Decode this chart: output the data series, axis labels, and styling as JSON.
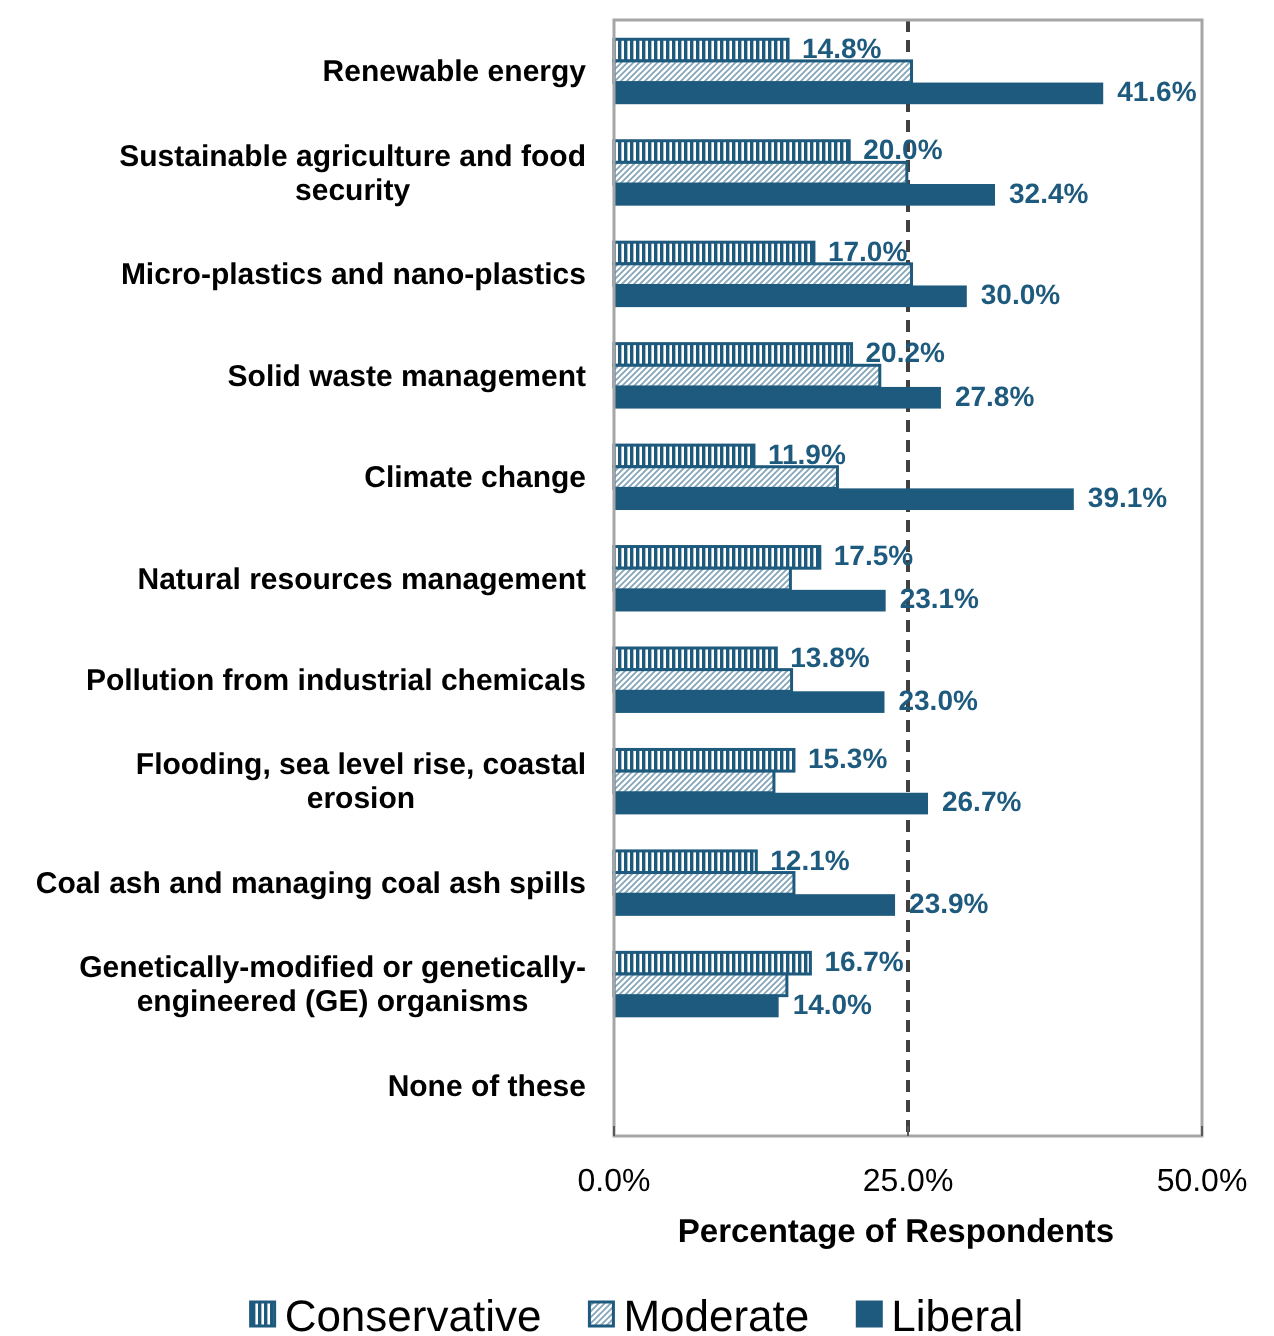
{
  "chart_data": {
    "type": "bar",
    "orientation": "horizontal",
    "categories": [
      "Renewable energy",
      "Sustainable agriculture and food security",
      "Micro-plastics and nano-plastics",
      "Solid waste management",
      "Climate change",
      "Natural resources management",
      "Pollution from industrial chemicals",
      "Flooding, sea level rise, coastal erosion",
      "Coal ash and managing coal ash spills",
      "Genetically-modified or genetically-engineered (GE) organisms",
      "None of these"
    ],
    "series": [
      {
        "name": "Conservative",
        "color": "#1e5a7d",
        "values": [
          14.8,
          20.0,
          17.0,
          20.2,
          11.9,
          17.5,
          13.8,
          15.3,
          12.1,
          16.7,
          null
        ],
        "value_labels": [
          "14.8%",
          "20.0%",
          "17.0%",
          "20.2%",
          "11.9%",
          "17.5%",
          "13.8%",
          "15.3%",
          "12.1%",
          "16.7%",
          null
        ]
      },
      {
        "name": "Moderate",
        "color": "#1e5a7d",
        "values": [
          25.3,
          24.9,
          25.3,
          22.6,
          19.0,
          15.0,
          15.1,
          13.6,
          15.3,
          14.7,
          null
        ]
      },
      {
        "name": "Liberal",
        "color": "#1e5a7d",
        "values": [
          41.6,
          32.4,
          30.0,
          27.8,
          39.1,
          23.1,
          23.0,
          26.7,
          23.9,
          14.0,
          null
        ],
        "value_labels": [
          "41.6%",
          "32.4%",
          "30.0%",
          "27.8%",
          "39.1%",
          "23.1%",
          "23.0%",
          "26.7%",
          "23.9%",
          "14.0%",
          null
        ]
      }
    ],
    "xlabel": "Percentage of Respondents",
    "xlim": [
      0,
      50
    ],
    "xticks": [
      {
        "value": 0,
        "label": "0.0%"
      },
      {
        "value": 25,
        "label": "25.0%"
      },
      {
        "value": 50,
        "label": "50.0%"
      }
    ],
    "ref_lines": [
      {
        "axis": "x",
        "value": 25,
        "color": "#404040",
        "line_style": "dashed"
      }
    ],
    "legend": "bottom"
  }
}
